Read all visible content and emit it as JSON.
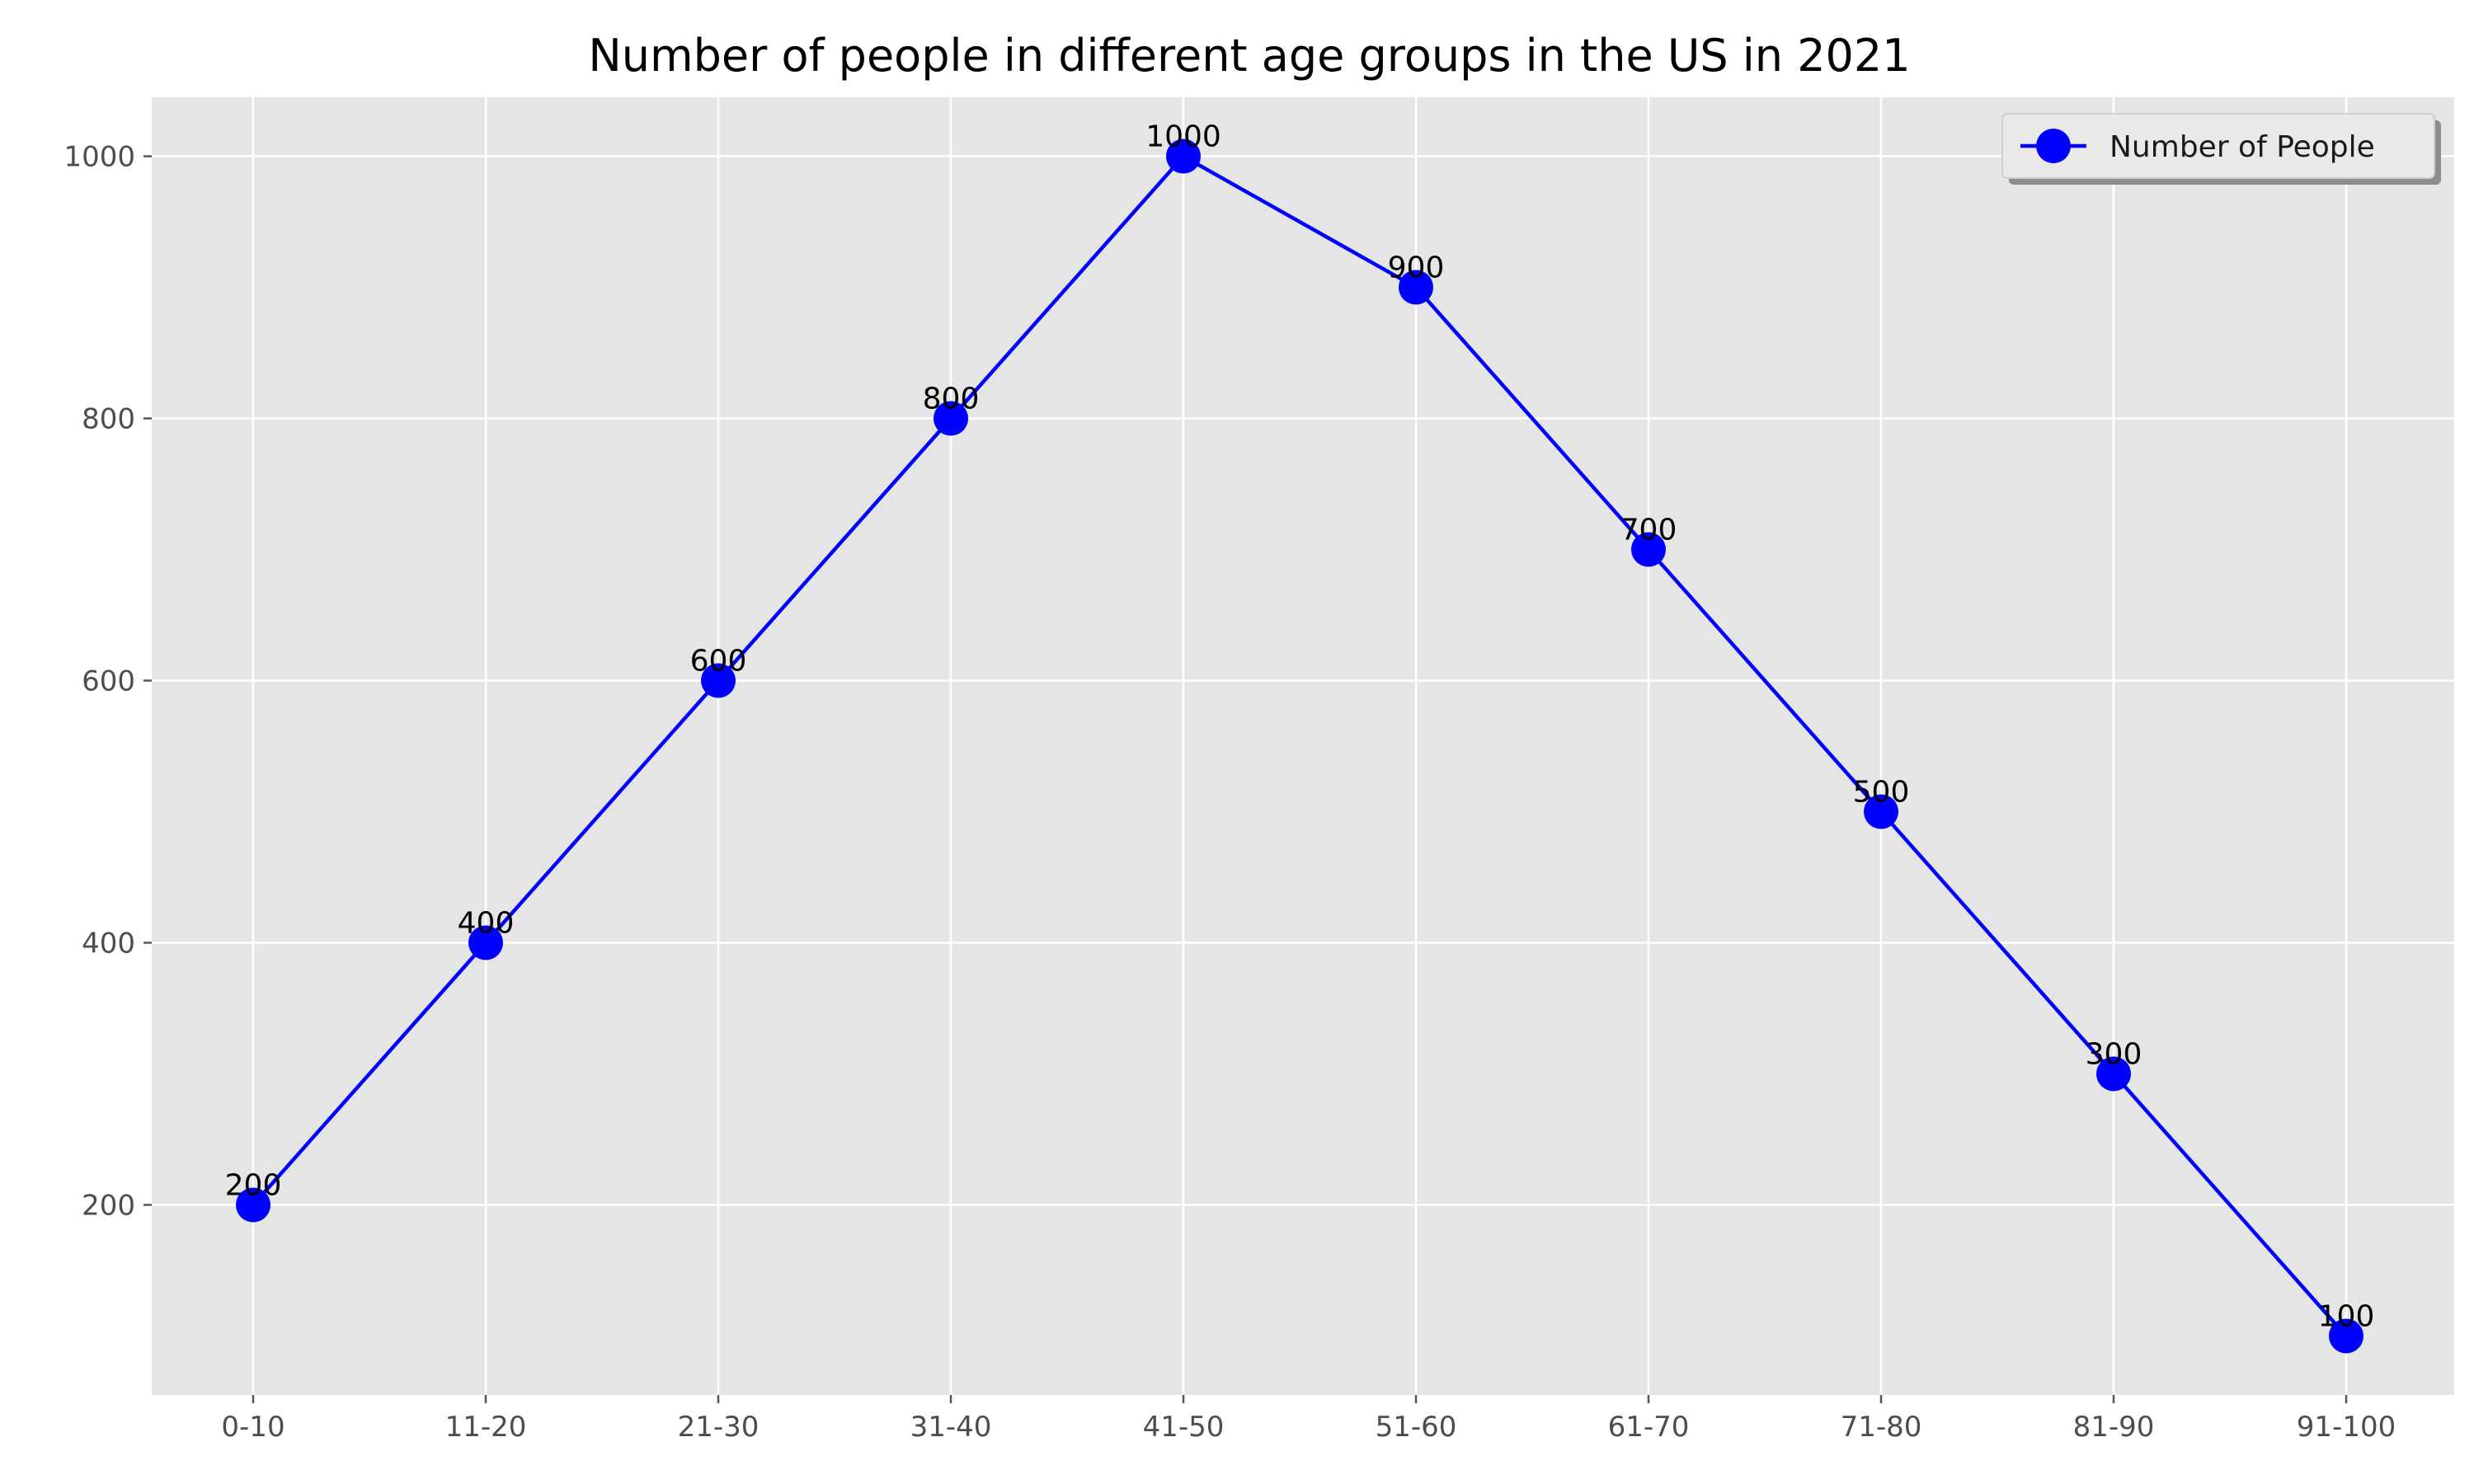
{
  "chart_data": {
    "type": "line",
    "title": "Number of people in different age groups in the US in 2021",
    "xlabel": "",
    "ylabel": "",
    "categories": [
      "0-10",
      "11-20",
      "21-30",
      "31-40",
      "41-50",
      "51-60",
      "61-70",
      "71-80",
      "81-90",
      "91-100"
    ],
    "series": [
      {
        "name": "Number of People",
        "values": [
          200,
          400,
          600,
          800,
          1000,
          900,
          700,
          500,
          300,
          100
        ],
        "color": "#0000ff",
        "marker": "circle"
      }
    ],
    "yticks": [
      200,
      400,
      600,
      800,
      1000
    ],
    "ylim": [
      55,
      1045
    ],
    "grid": true,
    "legend_position": "top-right",
    "background_color": "#e5e5e5"
  }
}
